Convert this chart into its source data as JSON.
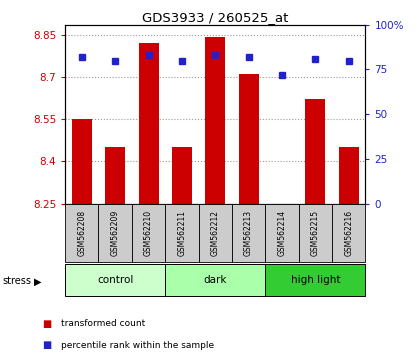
{
  "title": "GDS3933 / 260525_at",
  "samples": [
    "GSM562208",
    "GSM562209",
    "GSM562210",
    "GSM562211",
    "GSM562212",
    "GSM562213",
    "GSM562214",
    "GSM562215",
    "GSM562216"
  ],
  "bar_values": [
    8.55,
    8.45,
    8.82,
    8.45,
    8.84,
    8.71,
    8.25,
    8.62,
    8.45
  ],
  "percentile_values": [
    82,
    80,
    83,
    80,
    83,
    82,
    72,
    81,
    80
  ],
  "ylim_left": [
    8.25,
    8.885
  ],
  "ylim_right": [
    0,
    100
  ],
  "bar_color": "#cc0000",
  "percentile_color": "#2222cc",
  "bar_bottom": 8.25,
  "groups": [
    {
      "label": "control",
      "start": 0,
      "end": 3,
      "color": "#ccffcc"
    },
    {
      "label": "dark",
      "start": 3,
      "end": 6,
      "color": "#aaffaa"
    },
    {
      "label": "high light",
      "start": 6,
      "end": 9,
      "color": "#33cc33"
    }
  ],
  "tick_values_left": [
    8.25,
    8.4,
    8.55,
    8.7,
    8.85
  ],
  "tick_labels_left": [
    "8.25",
    "8.4",
    "8.55",
    "8.7",
    "8.85"
  ],
  "tick_values_right": [
    0,
    25,
    50,
    75,
    100
  ],
  "tick_labels_right": [
    "0",
    "25",
    "50",
    "75",
    "100%"
  ],
  "legend_items": [
    {
      "label": "transformed count",
      "color": "#cc0000"
    },
    {
      "label": "percentile rank within the sample",
      "color": "#2222cc"
    }
  ],
  "left_color": "#cc0000",
  "right_color": "#2222cc",
  "figsize": [
    4.2,
    3.54
  ],
  "dpi": 100,
  "sample_box_color": "#cccccc",
  "bg_color": "#ffffff"
}
